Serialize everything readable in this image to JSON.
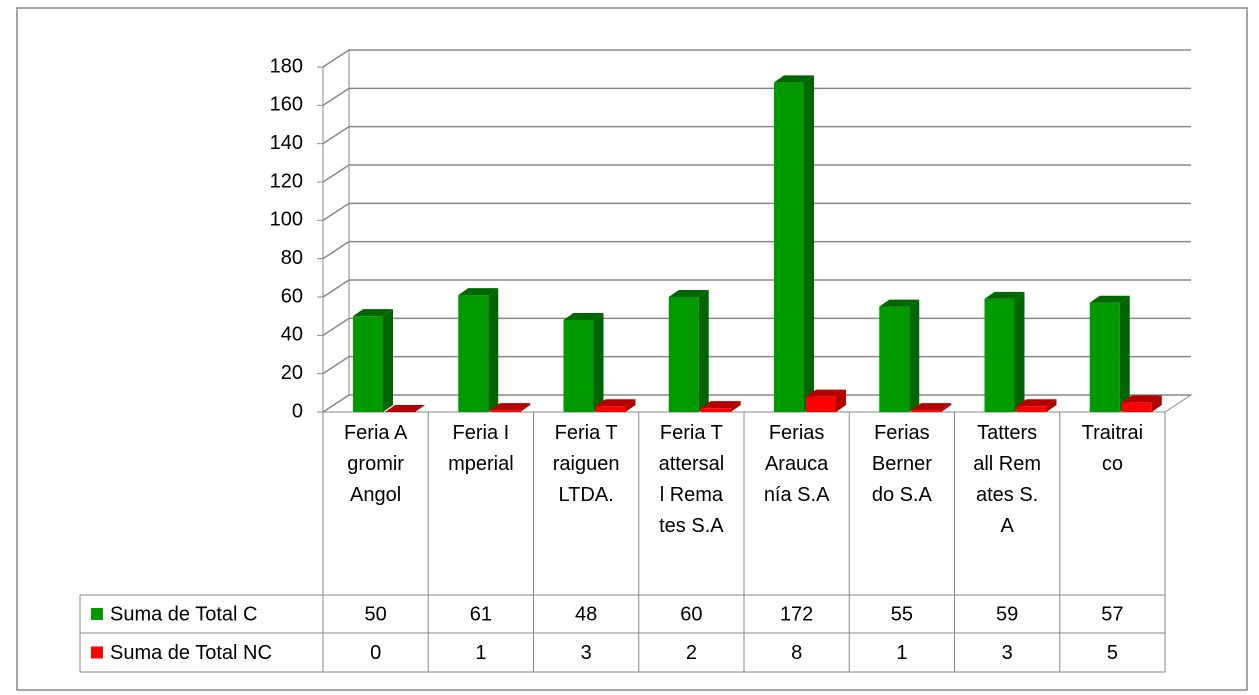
{
  "chart_data": {
    "type": "bar3d",
    "categories": [
      "Feria Agromir Angol",
      "Feria Imperial",
      "Feria Traiguen LTDA.",
      "Feria Tattersall Remates S.A",
      "Ferias Araucanía S.A",
      "Ferias Bernerdo S.A",
      "Tattersall Remates S.A",
      "Traitraico"
    ],
    "series": [
      {
        "name": "Suma de Total C",
        "color": "#009900",
        "side": "#006600",
        "values": [
          50,
          61,
          48,
          60,
          172,
          55,
          59,
          57
        ]
      },
      {
        "name": "Suma de Total NC",
        "color": "#ff0000",
        "side": "#b30000",
        "values": [
          0,
          1,
          3,
          2,
          8,
          1,
          3,
          5
        ]
      }
    ],
    "ylim": [
      0,
      180
    ],
    "yticks": [
      0,
      20,
      40,
      60,
      80,
      100,
      120,
      140,
      160,
      180
    ],
    "grid": true,
    "data_table": true
  }
}
